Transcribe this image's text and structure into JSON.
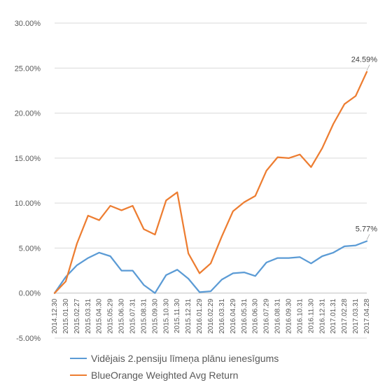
{
  "colors": {
    "series1": "#5b9bd5",
    "series2": "#ed7d31",
    "grid": "#d9d9d9",
    "axis": "#bfbfbf"
  },
  "chart_data": {
    "type": "line",
    "title": "",
    "xlabel": "",
    "ylabel": "",
    "ylim": [
      -0.05,
      0.3
    ],
    "yticks": [
      -0.05,
      0,
      0.05,
      0.1,
      0.15,
      0.2,
      0.25,
      0.3
    ],
    "ytick_labels": [
      "-5.00%",
      "0.00%",
      "5.00%",
      "10.00%",
      "15.00%",
      "20.00%",
      "25.00%",
      "30.00%"
    ],
    "grid": "horizontal",
    "legend": "bottom",
    "categories": [
      "2014.12.30",
      "2015.01.30",
      "2015.02.27",
      "2015.03.31",
      "2015.04.30",
      "2015.05.29",
      "2015.06.30",
      "2015.07.31",
      "2015.08.31",
      "2015.09.30",
      "2015.10.30",
      "2015.11.30",
      "2015.12.31",
      "2016.01.29",
      "2016.02.29",
      "2016.03.31",
      "2016.04.29",
      "2016.05.31",
      "2016.06.30",
      "2016.07.29",
      "2016.08.31",
      "2016.09.30",
      "2016.10.31",
      "2016.11.30",
      "2016.12.31",
      "2017.01.31",
      "2017.02.28",
      "2017.03.31",
      "2017.04.28"
    ],
    "series": [
      {
        "name": "Vidējais 2.pensiju līmeņa plānu ienesīgums",
        "color": "#5b9bd5",
        "values": [
          0.0,
          0.018,
          0.031,
          0.039,
          0.045,
          0.041,
          0.025,
          0.025,
          0.009,
          0.0,
          0.02,
          0.026,
          0.016,
          0.001,
          0.002,
          0.015,
          0.022,
          0.023,
          0.019,
          0.034,
          0.039,
          0.039,
          0.04,
          0.033,
          0.041,
          0.045,
          0.052,
          0.053,
          0.0577
        ],
        "end_label": "5.77%"
      },
      {
        "name": "BlueOrange Weighted Avg Return",
        "color": "#ed7d31",
        "values": [
          0.0,
          0.013,
          0.055,
          0.086,
          0.081,
          0.097,
          0.092,
          0.097,
          0.071,
          0.065,
          0.103,
          0.112,
          0.044,
          0.022,
          0.033,
          0.063,
          0.091,
          0.101,
          0.108,
          0.136,
          0.151,
          0.15,
          0.154,
          0.14,
          0.161,
          0.188,
          0.21,
          0.219,
          0.2459
        ],
        "end_label": "24.59%"
      }
    ]
  }
}
